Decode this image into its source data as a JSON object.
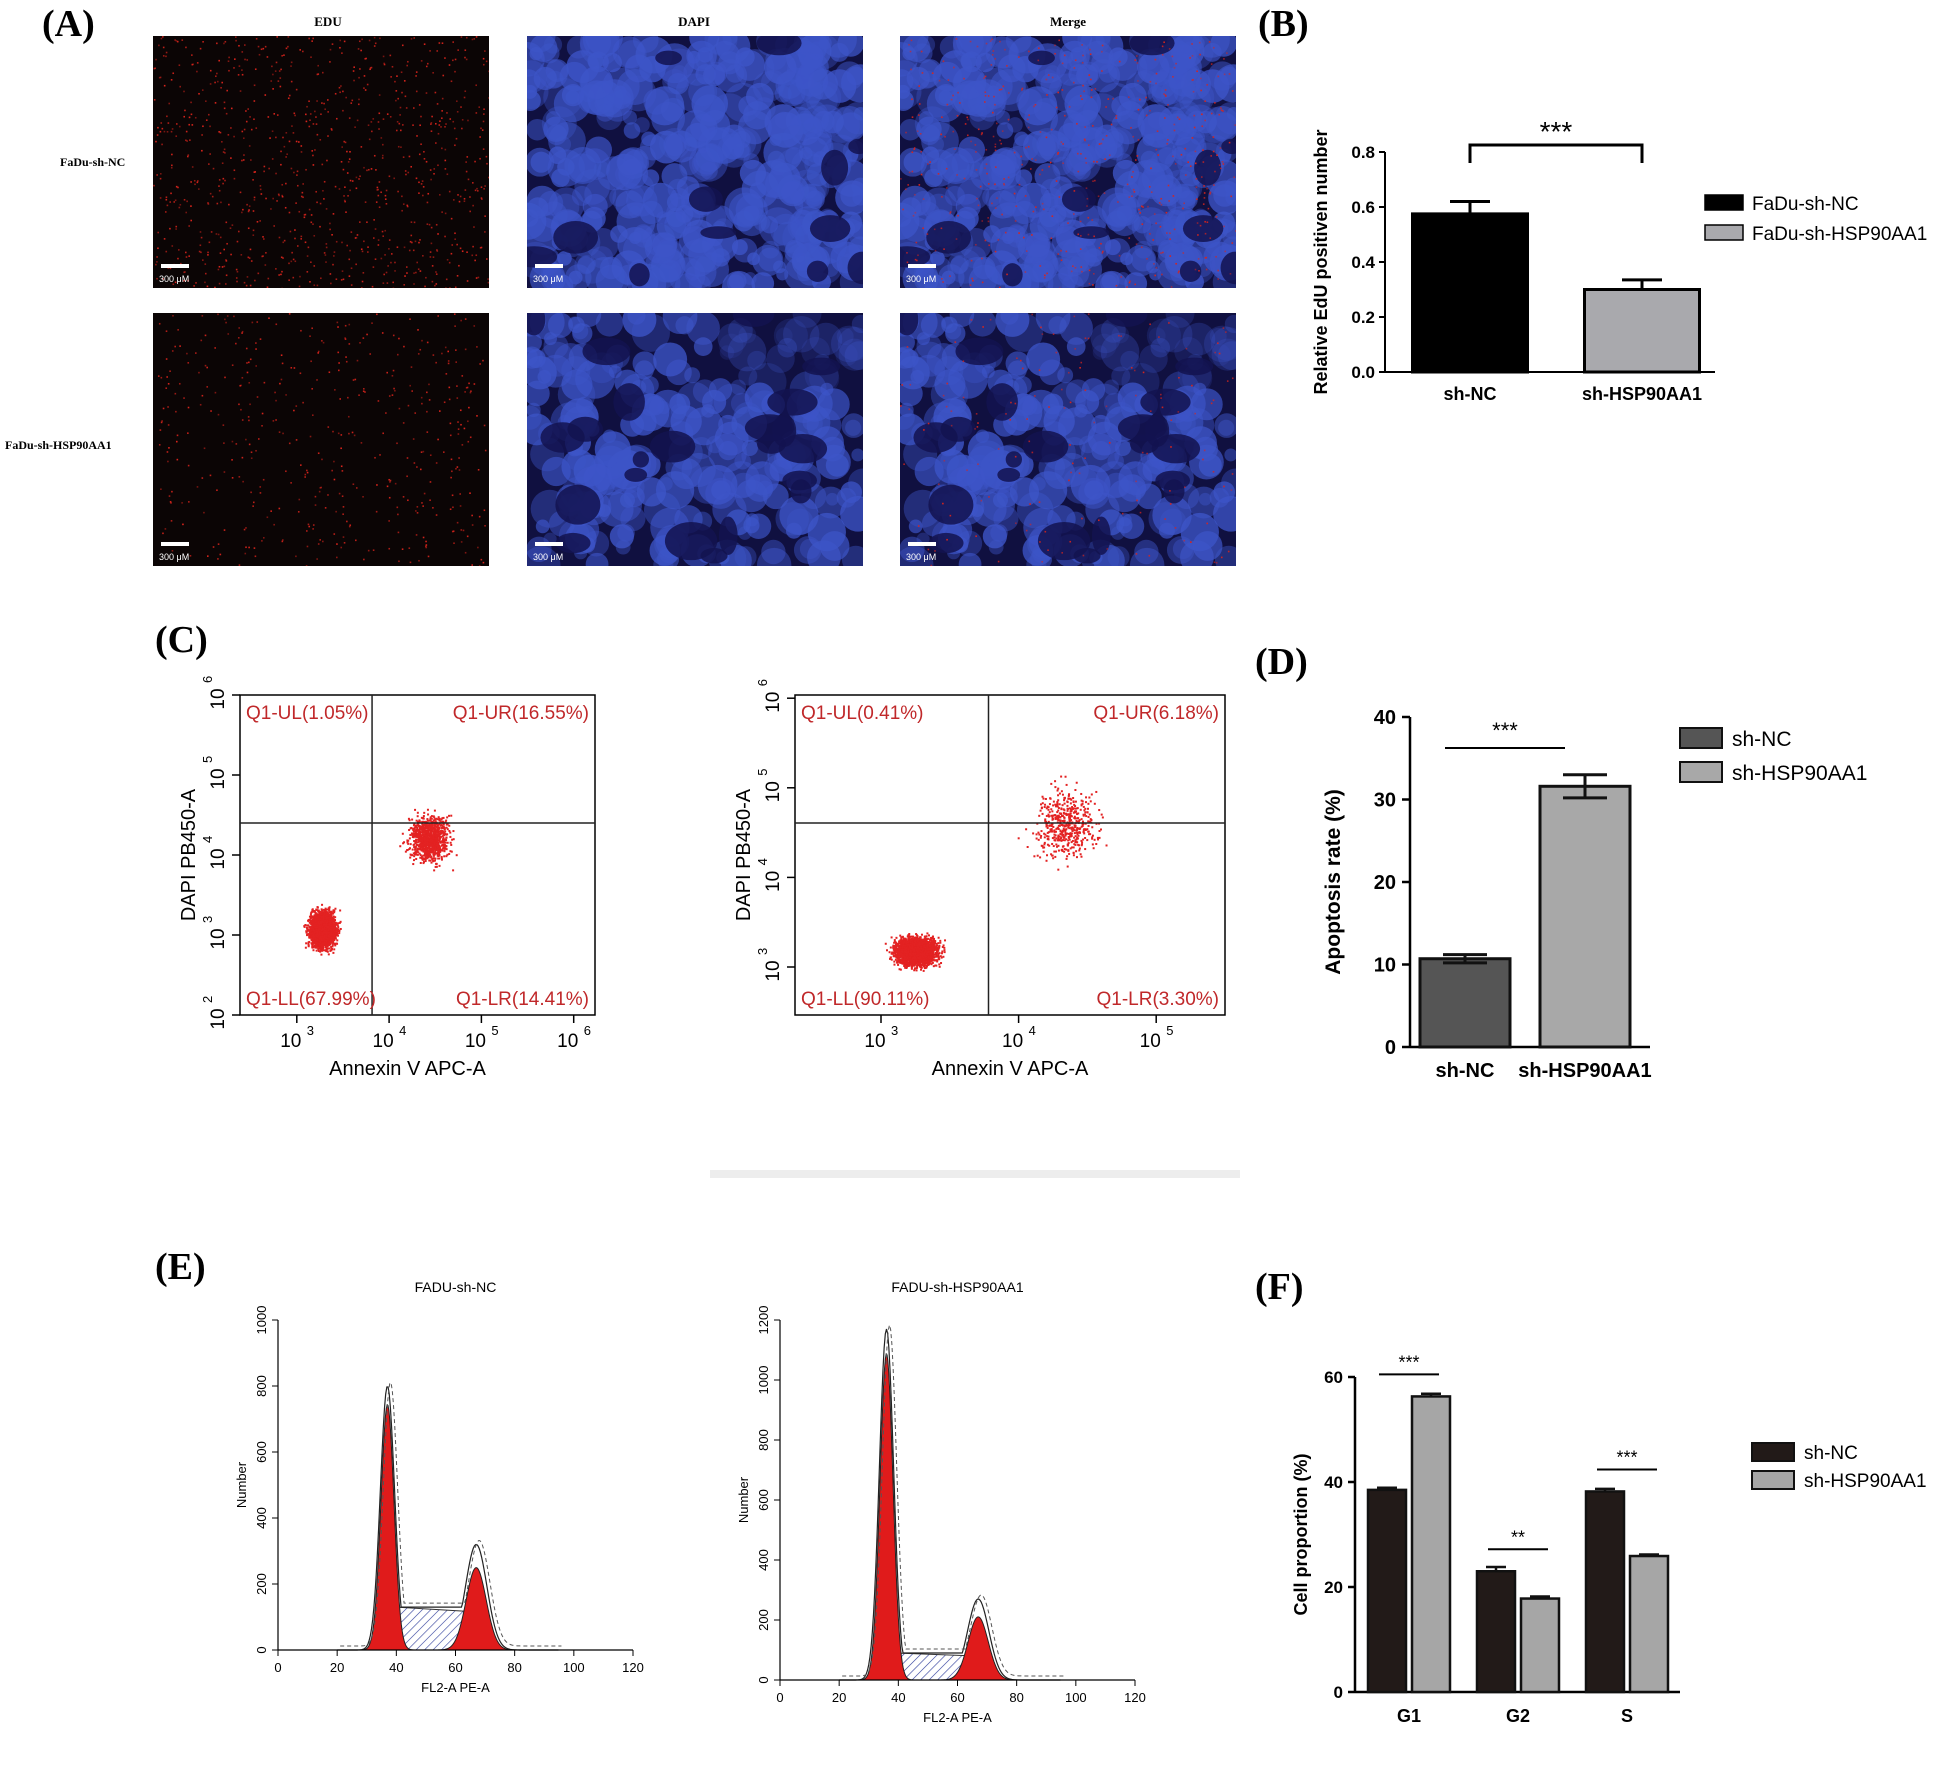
{
  "panels": {
    "a": "(A)",
    "b": "(B)",
    "c": "(C)",
    "d": "(D)",
    "e": "(E)",
    "f": "(F)"
  },
  "panel_a": {
    "columns": [
      "EDU",
      "DAPI",
      "Merge"
    ],
    "rows": [
      "FaDu-sh-NC",
      "FaDu-sh-HSP90AA1"
    ],
    "scale_label": "300 μM",
    "colors": {
      "edu": "#d9241c",
      "dapi": "#3d55c8",
      "background": "#0a0a10"
    }
  },
  "chart_data": [
    {
      "id": "B",
      "type": "bar",
      "categories": [
        "sh-NC",
        "sh-HSP90AA1"
      ],
      "values": [
        0.575,
        0.3
      ],
      "errors": [
        0.045,
        0.035
      ],
      "series_names": [
        "FaDu-sh-NC",
        "FaDu-sh-HSP90AA1"
      ],
      "colors": [
        "#000000",
        "#a9a9ad"
      ],
      "ylabel": "Relative EdU positiven number",
      "ylim": [
        0,
        0.8
      ],
      "yticks": [
        "0.0",
        "0.2",
        "0.4",
        "0.6",
        "0.8"
      ],
      "significance": "***",
      "legend_position": "right"
    },
    {
      "id": "C",
      "type": "scatter",
      "plots": [
        {
          "xlabel": "Annexin V APC-A",
          "ylabel": "DAPI PB450-A",
          "xticks": [
            "10",
            "10",
            "10",
            "10"
          ],
          "xtick_exps": [
            "3",
            "4",
            "5",
            "6"
          ],
          "yticks": [
            "10",
            "10",
            "10",
            "10",
            "10"
          ],
          "ytick_exps": [
            "2",
            "3",
            "4",
            "5",
            "6"
          ],
          "quadrants": {
            "ul": "Q1-UL(1.05%)",
            "ur": "Q1-UR(16.55%)",
            "ll": "Q1-LL(67.99%)",
            "lr": "Q1-LR(14.41%)"
          },
          "quadrant_values": {
            "ul": 1.05,
            "ur": 16.55,
            "ll": 67.99,
            "lr": 14.41
          }
        },
        {
          "xlabel": "Annexin V APC-A",
          "ylabel": "DAPI PB450-A",
          "xticks": [
            "10",
            "10",
            "10"
          ],
          "xtick_exps": [
            "3",
            "4",
            "5"
          ],
          "yticks": [
            "10",
            "10",
            "10",
            "10"
          ],
          "ytick_exps": [
            "3",
            "4",
            "5",
            "6"
          ],
          "quadrants": {
            "ul": "Q1-UL(0.41%)",
            "ur": "Q1-UR(6.18%)",
            "ll": "Q1-LL(90.11%)",
            "lr": "Q1-LR(3.30%)"
          },
          "quadrant_values": {
            "ul": 0.41,
            "ur": 6.18,
            "ll": 90.11,
            "lr": 3.3
          }
        }
      ],
      "point_color": "#e32222"
    },
    {
      "id": "D",
      "type": "bar",
      "categories": [
        "sh-NC",
        "sh-HSP90AA1"
      ],
      "values": [
        10.7,
        31.6
      ],
      "errors": [
        0.5,
        1.4
      ],
      "series_names": [
        "sh-NC",
        "sh-HSP90AA1"
      ],
      "colors": [
        "#555555",
        "#a8a8a8"
      ],
      "ylabel": "Apoptosis rate (%)",
      "ylim": [
        0,
        40
      ],
      "yticks": [
        "0",
        "10",
        "20",
        "30",
        "40"
      ],
      "significance": "***",
      "legend_position": "top-right"
    },
    {
      "id": "E",
      "type": "area",
      "plots": [
        {
          "title": "FADU-sh-NC",
          "xlabel": "FL2-A PE-A",
          "ylabel": "Number",
          "xticks": [
            "0",
            "20",
            "40",
            "60",
            "80",
            "100",
            "120"
          ],
          "yticks": [
            "0",
            "200",
            "400",
            "600",
            "800",
            "1000"
          ],
          "xlim": [
            0,
            120
          ],
          "ylim": [
            0,
            1000
          ],
          "g1_peak": {
            "x": 37,
            "y": 800
          },
          "g2_peak": {
            "x": 67,
            "y": 320
          }
        },
        {
          "title": "FADU-sh-HSP90AA1",
          "xlabel": "FL2-A PE-A",
          "ylabel": "Number",
          "xticks": [
            "0",
            "20",
            "40",
            "60",
            "80",
            "100",
            "120"
          ],
          "yticks": [
            "0",
            "200",
            "400",
            "600",
            "800",
            "1000",
            "1200"
          ],
          "xlim": [
            0,
            120
          ],
          "ylim": [
            0,
            1200
          ],
          "g1_peak": {
            "x": 36,
            "y": 1170
          },
          "g2_peak": {
            "x": 67,
            "y": 270
          }
        }
      ],
      "fill_color": "#e01b1b"
    },
    {
      "id": "F",
      "type": "bar",
      "categories": [
        "G1",
        "G2",
        "S"
      ],
      "series": [
        {
          "name": "sh-NC",
          "values": [
            38.5,
            23.0,
            38.2
          ],
          "errors": [
            0.4,
            0.8,
            0.5
          ],
          "color": "#221a18"
        },
        {
          "name": "sh-HSP90AA1",
          "values": [
            56.3,
            17.8,
            25.9
          ],
          "errors": [
            0.5,
            0.4,
            0.3
          ],
          "color": "#a6a6a6"
        }
      ],
      "significance": [
        "***",
        "**",
        "***"
      ],
      "ylabel": "Cell proportion (%)",
      "ylim": [
        0,
        60
      ],
      "yticks": [
        "0",
        "20",
        "40",
        "60"
      ],
      "legend_position": "right"
    }
  ]
}
